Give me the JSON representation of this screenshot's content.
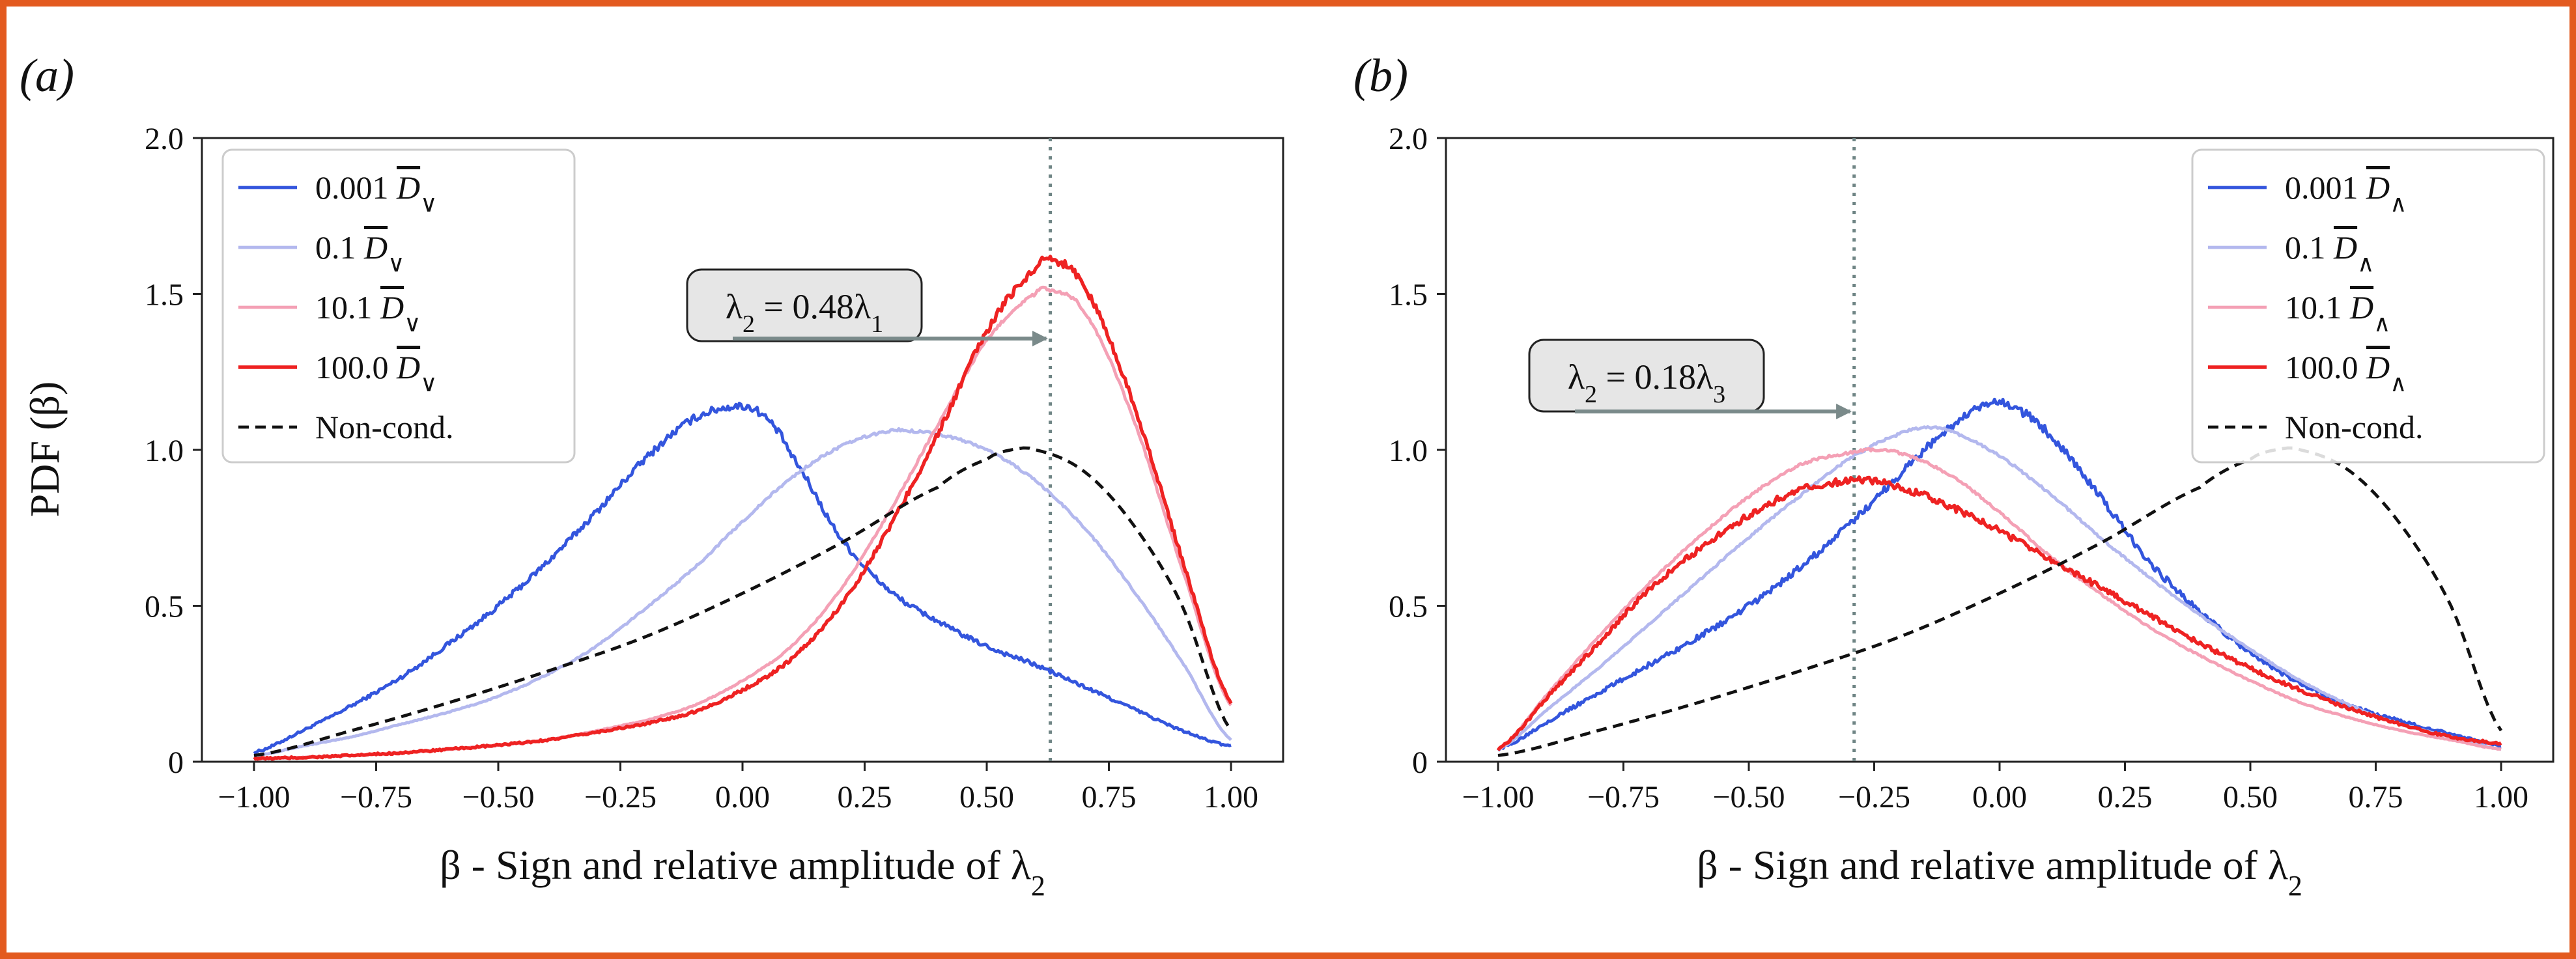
{
  "figure": {
    "border_color": "#e35a1f",
    "ylabel": "PDF (β)"
  },
  "chart_data": [
    {
      "type": "line",
      "panel_label": "(a)",
      "xlabel": "β - Sign and relative amplitude of λ2",
      "ylabel": "PDF (β)",
      "xlim": [
        -1.0,
        1.0
      ],
      "ylim": [
        0,
        2.0
      ],
      "x_ticks": [
        "−1.00",
        "−0.75",
        "−0.50",
        "−0.25",
        "0.00",
        "0.25",
        "0.50",
        "0.75",
        "1.00"
      ],
      "x_tick_values": [
        -1.0,
        -0.75,
        -0.5,
        -0.25,
        0.0,
        0.25,
        0.5,
        0.75,
        1.0
      ],
      "y_ticks": [
        "0",
        "0.5",
        "1.0",
        "1.5",
        "2.0"
      ],
      "y_tick_values": [
        0,
        0.5,
        1.0,
        1.5,
        2.0
      ],
      "grid": false,
      "legend_placement": "upper-left",
      "annotation": {
        "text": "λ2 = 0.48λ1",
        "x": 0.63
      },
      "series": [
        {
          "name": "0.001 D∨",
          "color": "#3355dd",
          "style": "solid",
          "width": 1.6,
          "noise": 0.012,
          "x": [
            -1.0,
            -0.9,
            -0.8,
            -0.7,
            -0.6,
            -0.5,
            -0.4,
            -0.3,
            -0.2,
            -0.1,
            0.0,
            0.05,
            0.1,
            0.2,
            0.3,
            0.4,
            0.5,
            0.6,
            0.7,
            0.8,
            0.9,
            1.0
          ],
          "values": [
            0.03,
            0.1,
            0.18,
            0.27,
            0.38,
            0.5,
            0.64,
            0.8,
            0.97,
            1.1,
            1.14,
            1.1,
            0.98,
            0.72,
            0.55,
            0.45,
            0.37,
            0.31,
            0.24,
            0.17,
            0.1,
            0.05
          ]
        },
        {
          "name": "0.1 D∨",
          "color": "#b3b8ee",
          "style": "solid",
          "width": 1.6,
          "noise": 0.004,
          "x": [
            -1.0,
            -0.9,
            -0.8,
            -0.7,
            -0.6,
            -0.5,
            -0.4,
            -0.3,
            -0.2,
            -0.1,
            0.0,
            0.1,
            0.2,
            0.3,
            0.35,
            0.4,
            0.5,
            0.6,
            0.7,
            0.8,
            0.9,
            1.0
          ],
          "values": [
            0.02,
            0.05,
            0.08,
            0.12,
            0.16,
            0.21,
            0.28,
            0.37,
            0.49,
            0.62,
            0.77,
            0.91,
            1.01,
            1.06,
            1.06,
            1.05,
            1.0,
            0.9,
            0.75,
            0.55,
            0.32,
            0.07
          ]
        },
        {
          "name": "10.1 D∨",
          "color": "#f4a0b5",
          "style": "solid",
          "width": 1.6,
          "noise": 0.004,
          "x": [
            -1.0,
            -0.8,
            -0.6,
            -0.4,
            -0.2,
            -0.1,
            0.0,
            0.1,
            0.2,
            0.3,
            0.4,
            0.5,
            0.6,
            0.63,
            0.7,
            0.8,
            0.9,
            1.0
          ],
          "values": [
            0.01,
            0.02,
            0.04,
            0.07,
            0.13,
            0.18,
            0.26,
            0.37,
            0.55,
            0.8,
            1.08,
            1.35,
            1.5,
            1.51,
            1.44,
            1.1,
            0.62,
            0.18
          ]
        },
        {
          "name": "100.0 D∨",
          "color": "#ee2222",
          "style": "solid",
          "width": 1.8,
          "noise": 0.01,
          "x": [
            -1.0,
            -0.8,
            -0.6,
            -0.4,
            -0.2,
            -0.1,
            0.0,
            0.1,
            0.2,
            0.3,
            0.4,
            0.5,
            0.6,
            0.63,
            0.7,
            0.8,
            0.9,
            1.0
          ],
          "values": [
            0.01,
            0.02,
            0.04,
            0.07,
            0.12,
            0.16,
            0.23,
            0.33,
            0.5,
            0.75,
            1.05,
            1.38,
            1.58,
            1.61,
            1.52,
            1.15,
            0.65,
            0.19
          ]
        },
        {
          "name": "Non-cond.",
          "color": "#111111",
          "style": "dashed",
          "width": 1.6,
          "noise": 0,
          "x": [
            -1.0,
            -0.8,
            -0.6,
            -0.4,
            -0.2,
            0.0,
            0.2,
            0.4,
            0.5,
            0.55,
            0.6,
            0.7,
            0.8,
            0.9,
            1.0
          ],
          "values": [
            0.02,
            0.1,
            0.19,
            0.29,
            0.4,
            0.54,
            0.7,
            0.88,
            0.97,
            1.0,
            1.0,
            0.93,
            0.76,
            0.5,
            0.1
          ]
        }
      ]
    },
    {
      "type": "line",
      "panel_label": "(b)",
      "xlabel": "β - Sign and relative amplitude of λ2",
      "xlim": [
        -1.0,
        1.0
      ],
      "ylim": [
        0,
        2.0
      ],
      "x_ticks": [
        "−1.00",
        "−0.75",
        "−0.50",
        "−0.25",
        "0.00",
        "0.25",
        "0.50",
        "0.75",
        "1.00"
      ],
      "x_tick_values": [
        -1.0,
        -0.75,
        -0.5,
        -0.25,
        0.0,
        0.25,
        0.5,
        0.75,
        1.0
      ],
      "y_ticks": [
        "0",
        "0.5",
        "1.0",
        "1.5",
        "2.0"
      ],
      "y_tick_values": [
        0,
        0.5,
        1.0,
        1.5,
        2.0
      ],
      "grid": false,
      "legend_placement": "upper-right",
      "annotation": {
        "text": "λ2 = 0.18λ3",
        "x": -0.29
      },
      "series": [
        {
          "name": "0.001 D∧",
          "color": "#3355dd",
          "style": "solid",
          "width": 1.6,
          "noise": 0.014,
          "x": [
            -1.0,
            -0.9,
            -0.8,
            -0.7,
            -0.6,
            -0.5,
            -0.4,
            -0.3,
            -0.2,
            -0.1,
            0.0,
            0.1,
            0.2,
            0.3,
            0.4,
            0.5,
            0.6,
            0.7,
            0.8,
            0.9,
            1.0
          ],
          "values": [
            0.04,
            0.13,
            0.22,
            0.31,
            0.4,
            0.5,
            0.62,
            0.76,
            0.92,
            1.07,
            1.15,
            1.05,
            0.85,
            0.64,
            0.48,
            0.35,
            0.25,
            0.18,
            0.13,
            0.09,
            0.05
          ]
        },
        {
          "name": "0.1 D∧",
          "color": "#b3b8ee",
          "style": "solid",
          "width": 1.6,
          "noise": 0.004,
          "x": [
            -1.0,
            -0.9,
            -0.8,
            -0.7,
            -0.6,
            -0.5,
            -0.4,
            -0.3,
            -0.2,
            -0.15,
            -0.1,
            0.0,
            0.1,
            0.2,
            0.3,
            0.4,
            0.5,
            0.6,
            0.7,
            0.8,
            0.9,
            1.0
          ],
          "values": [
            0.04,
            0.17,
            0.3,
            0.44,
            0.58,
            0.72,
            0.85,
            0.97,
            1.05,
            1.07,
            1.06,
            0.98,
            0.86,
            0.72,
            0.59,
            0.47,
            0.36,
            0.26,
            0.18,
            0.12,
            0.08,
            0.04
          ]
        },
        {
          "name": "10.1 D∧",
          "color": "#f4a0b5",
          "style": "solid",
          "width": 1.6,
          "noise": 0.004,
          "x": [
            -1.0,
            -0.9,
            -0.8,
            -0.7,
            -0.6,
            -0.5,
            -0.4,
            -0.3,
            -0.25,
            -0.2,
            -0.1,
            0.0,
            0.1,
            0.2,
            0.3,
            0.4,
            0.5,
            0.6,
            0.7,
            0.8,
            0.9,
            1.0
          ],
          "values": [
            0.04,
            0.22,
            0.4,
            0.57,
            0.72,
            0.85,
            0.95,
            0.99,
            1.0,
            0.99,
            0.92,
            0.8,
            0.66,
            0.54,
            0.43,
            0.34,
            0.26,
            0.19,
            0.14,
            0.1,
            0.07,
            0.04
          ]
        },
        {
          "name": "100.0 D∧",
          "color": "#ee2222",
          "style": "solid",
          "width": 1.8,
          "noise": 0.012,
          "x": [
            -1.0,
            -0.9,
            -0.8,
            -0.7,
            -0.6,
            -0.5,
            -0.4,
            -0.3,
            -0.25,
            -0.2,
            -0.1,
            0.0,
            0.1,
            0.2,
            0.3,
            0.4,
            0.5,
            0.6,
            0.7,
            0.8,
            0.9,
            1.0
          ],
          "values": [
            0.04,
            0.21,
            0.38,
            0.55,
            0.68,
            0.79,
            0.87,
            0.9,
            0.9,
            0.88,
            0.82,
            0.74,
            0.65,
            0.56,
            0.47,
            0.38,
            0.3,
            0.23,
            0.17,
            0.12,
            0.08,
            0.06
          ]
        },
        {
          "name": "Non-cond.",
          "color": "#111111",
          "style": "dashed",
          "width": 1.6,
          "noise": 0,
          "x": [
            -1.0,
            -0.8,
            -0.6,
            -0.4,
            -0.2,
            0.0,
            0.2,
            0.4,
            0.5,
            0.55,
            0.6,
            0.7,
            0.8,
            0.9,
            1.0
          ],
          "values": [
            0.02,
            0.1,
            0.19,
            0.29,
            0.4,
            0.54,
            0.7,
            0.88,
            0.97,
            1.0,
            1.0,
            0.93,
            0.76,
            0.5,
            0.1
          ]
        }
      ]
    }
  ]
}
